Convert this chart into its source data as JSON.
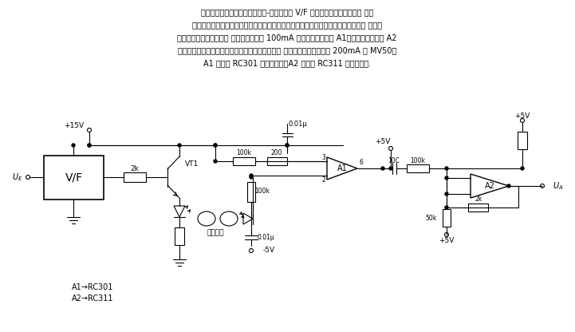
{
  "title_lines": [
    "电路首先将输入模拟信号经电压-频率变换器 V/F 变换为频率信号，由发光 二极",
    "管送进光导纤维。光导纤维或聚苯乙烯杆的长度决定于数字或模拟信号输入端和光敏 二极管",
    "之间隔离的电压值。光敏 二极管可驱动有 100mA 输出的运算放大器 A1，再经运算放大器 A2",
    "放大就可驱动电缆、继电器或扬声器等负载。发光 二极管可采用输出高达 200mA 的 MV50。",
    "A1 可采用 RC301 运算放大器。A2 可采用 RC311 运算放大器."
  ],
  "bottom_labels": [
    "A1→RC301",
    "A2→RC311"
  ],
  "bg_color": "#ffffff"
}
